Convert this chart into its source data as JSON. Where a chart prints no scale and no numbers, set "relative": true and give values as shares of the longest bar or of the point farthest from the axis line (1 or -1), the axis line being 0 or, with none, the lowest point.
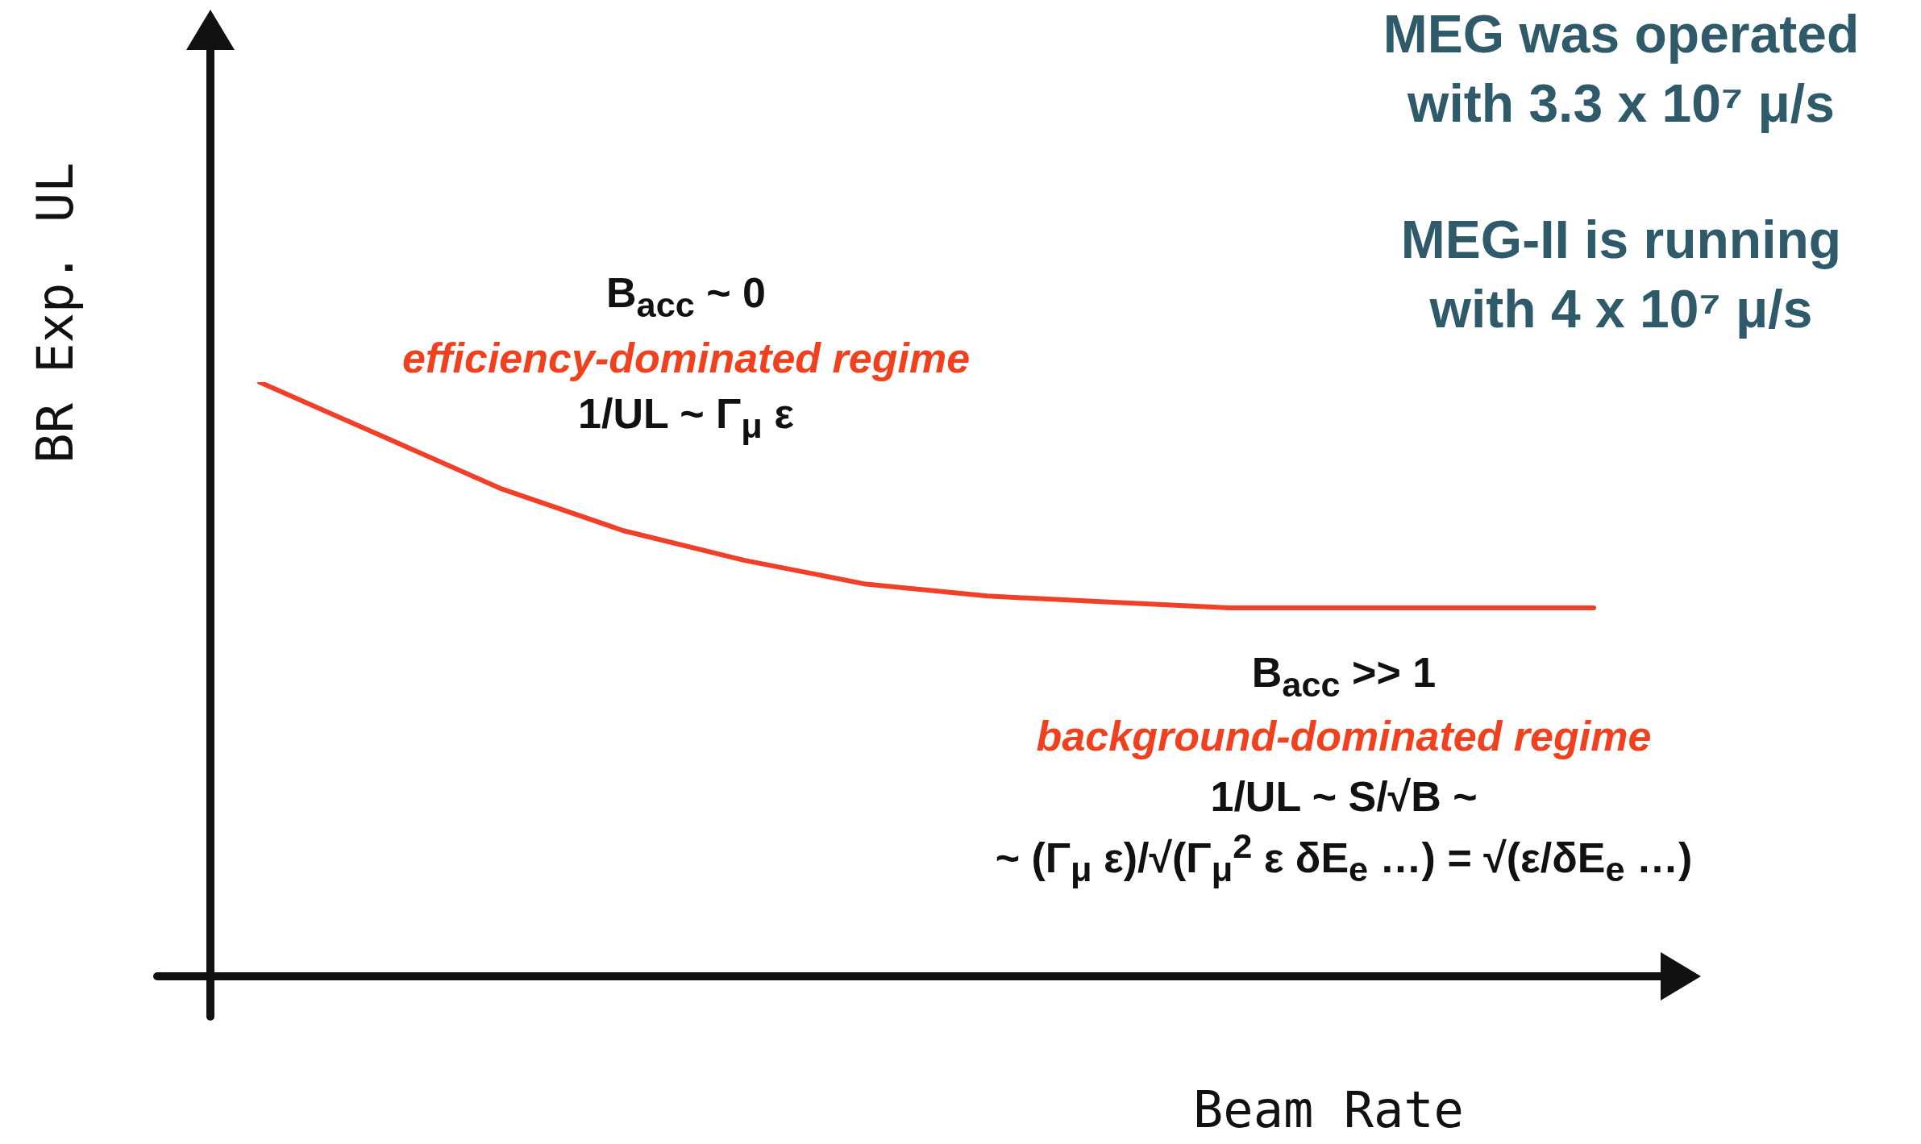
{
  "chart_data": {
    "type": "line",
    "relative": true,
    "xlabel": "Beam Rate",
    "ylabel": "BR Exp. UL",
    "categories": [
      null,
      null,
      null,
      null,
      null,
      null,
      null,
      null,
      null,
      null,
      null,
      null
    ],
    "series": [
      {
        "color": "#f0402a",
        "values": [
          1.0,
          0.91,
          0.82,
          0.75,
          0.7,
          0.66,
          0.64,
          0.63,
          0.62,
          0.62,
          0.62,
          0.62
        ]
      }
    ],
    "marker": "none",
    "legend": false,
    "annotations": [
      "B$_{acc}$ ~ 0",
      "efficiency-dominated regime",
      "1/UL ~ Γ$_{μ}$ ε",
      "B$_{acc}$ >> 1",
      "background-dominated regime",
      "1/UL ~ S/√B ~",
      "~ (Γ$_{μ}$ ε)/√(Γ$_{μ}$$^{2}$ ε δE$_{e}$ …) = √(ε/δE$_{e}$ …)",
      "MEG was operated with 3.3 x 10⁷ μ/s",
      "MEG-II is running with 4 x 10⁷ μ/s"
    ]
  }
}
